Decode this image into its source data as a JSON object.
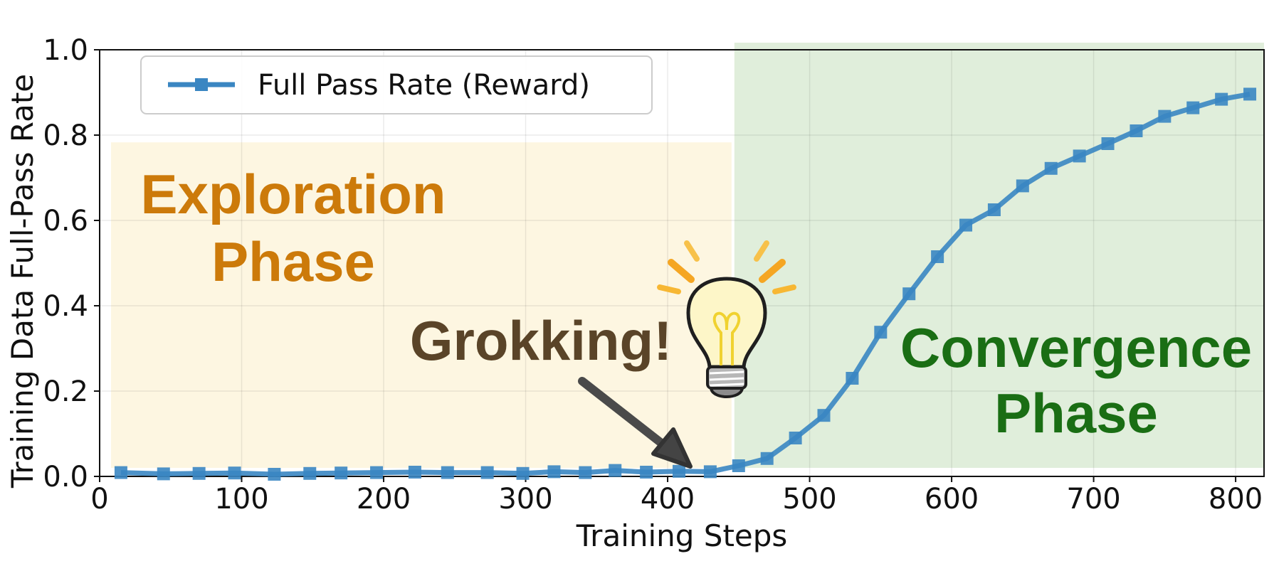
{
  "chart_data": {
    "type": "line",
    "xlabel": "Training Steps",
    "ylabel": "Training Data Full-Pass Rate",
    "xlim": [
      0,
      820
    ],
    "ylim": [
      0,
      1.0
    ],
    "xticks": [
      "0",
      "100",
      "200",
      "300",
      "400",
      "500",
      "600",
      "700",
      "800"
    ],
    "yticks": [
      "0.0",
      "0.2",
      "0.4",
      "0.6",
      "0.8",
      "1.0"
    ],
    "grid": true,
    "legend_position": "top-left",
    "series": [
      {
        "name": "Full Pass Rate (Reward)",
        "color": "#3a86c2",
        "marker": "square",
        "x": [
          15,
          45,
          70,
          95,
          123,
          148,
          170,
          195,
          222,
          245,
          273,
          298,
          320,
          342,
          363,
          385,
          408,
          430,
          450,
          470,
          490,
          510,
          530,
          550,
          570,
          590,
          610,
          630,
          650,
          670,
          690,
          710,
          730,
          750,
          770,
          790,
          810
        ],
        "y": [
          0.009,
          0.006,
          0.007,
          0.008,
          0.005,
          0.007,
          0.008,
          0.009,
          0.01,
          0.009,
          0.009,
          0.007,
          0.011,
          0.009,
          0.014,
          0.01,
          0.012,
          0.011,
          0.025,
          0.042,
          0.09,
          0.143,
          0.23,
          0.338,
          0.428,
          0.515,
          0.589,
          0.625,
          0.681,
          0.722,
          0.751,
          0.78,
          0.81,
          0.844,
          0.864,
          0.884,
          0.896
        ]
      }
    ],
    "regions": [
      {
        "label": "Exploration\nPhase",
        "x_start": 8,
        "x_end": 445,
        "y_start": 0.02,
        "y_end": 0.783,
        "color": "#fdf6e1",
        "text_color": "#cc7a0a"
      },
      {
        "label": "Convergence\nPhase",
        "x_start": 447,
        "x_end": 820,
        "y_start": 0.02,
        "y_end": 1.0,
        "color": "#e0eedb",
        "text_color": "#1a6e14"
      }
    ],
    "annotations": [
      {
        "text": "Grokking!",
        "color": "#5a4428",
        "icon": "lightbulb-icon"
      }
    ]
  }
}
